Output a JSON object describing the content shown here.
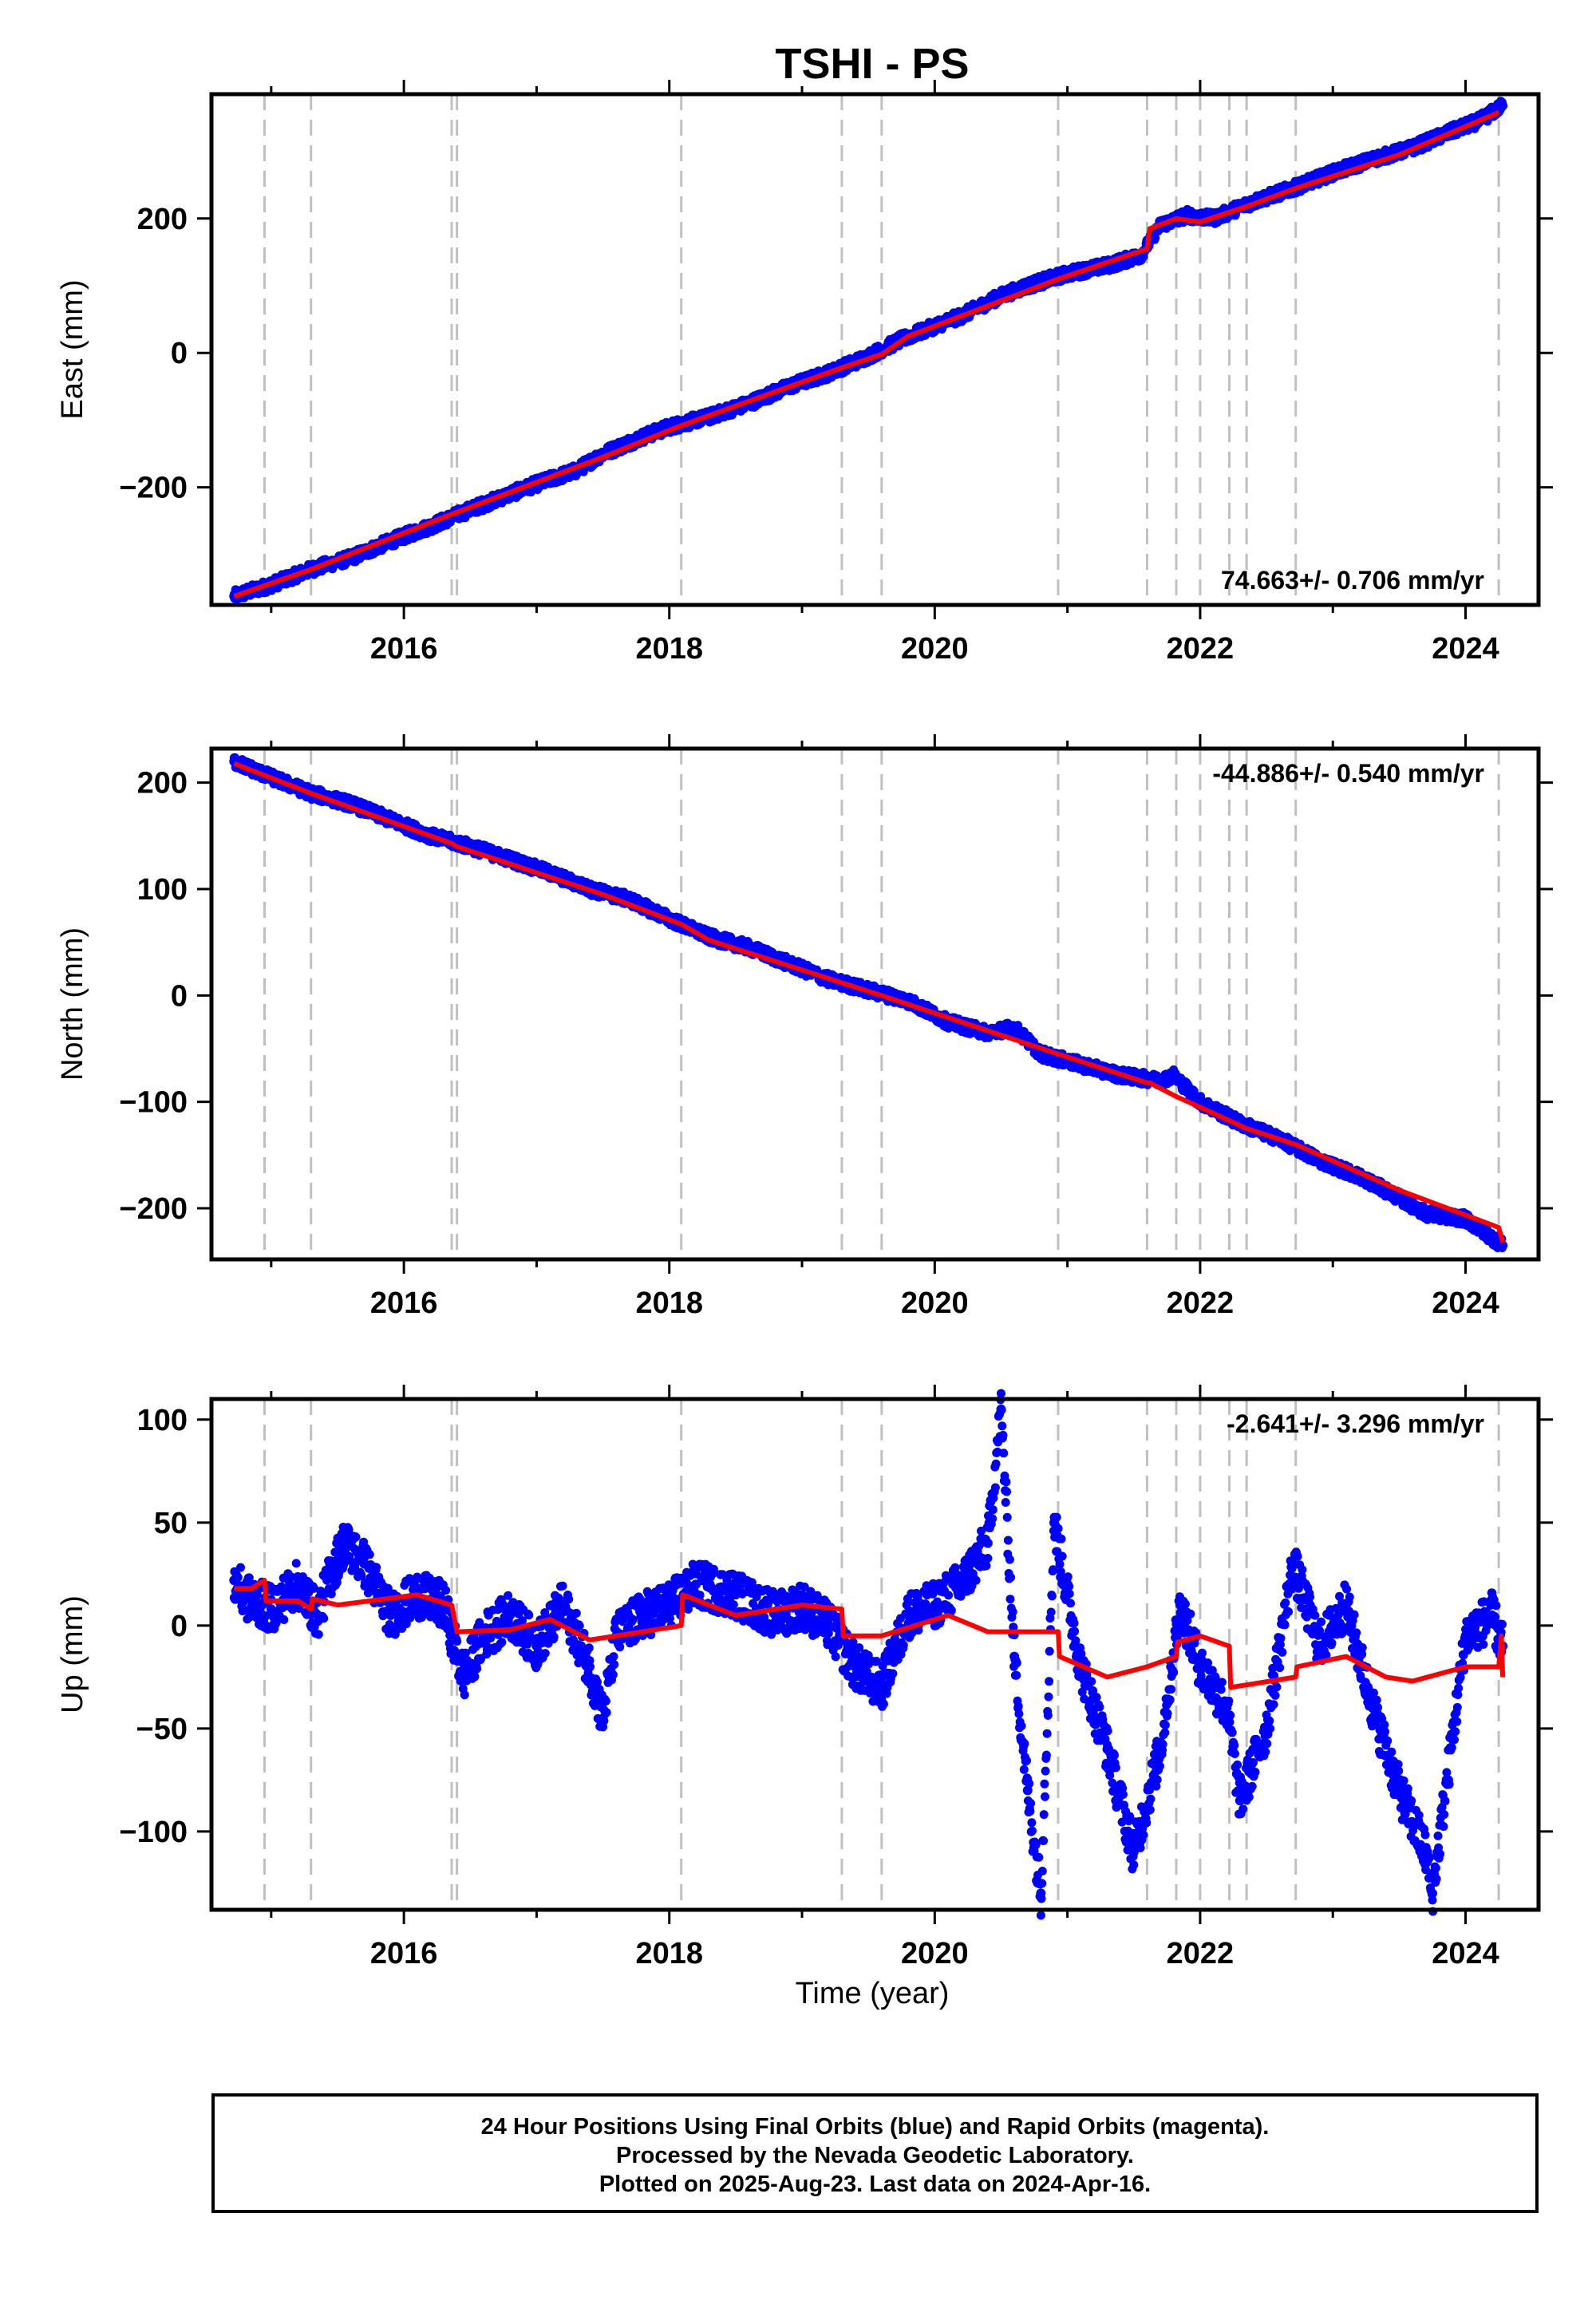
{
  "title": "TSHI - PS",
  "xlabel": "Time (year)",
  "colors": {
    "final_orbits": "#0000ff",
    "model_fit": "#ff0000",
    "event_lines": "#c0c0c0",
    "frame": "#000000"
  },
  "footer": {
    "line1": "24 Hour Positions Using Final Orbits (blue) and Rapid Orbits (magenta).",
    "line2": "Processed by the Nevada Geodetic Laboratory.",
    "line3": "Plotted on 2025-Aug-23. Last data on 2024-Apr-16."
  },
  "chart_data": [
    {
      "type": "scatter",
      "panel": "east",
      "ylabel": "East (mm)",
      "annotation": "74.663+/- 0.706 mm/yr",
      "annotation_position": "bottom-right",
      "xlim": [
        2014.55,
        2024.55
      ],
      "ylim": [
        -375,
        385
      ],
      "xticks": [
        2016,
        2018,
        2020,
        2022,
        2024
      ],
      "yticks": [
        -200,
        0,
        200
      ],
      "event_lines": [
        2014.95,
        2015.3,
        2016.36,
        2016.4,
        2018.09,
        2019.3,
        2019.6,
        2020.93,
        2021.6,
        2021.82,
        2022.0,
        2022.22,
        2022.35,
        2022.72,
        2024.25
      ],
      "series": [
        {
          "kind": "points",
          "values": [
            [
              2014.72,
              -362
            ],
            [
              2015.0,
              -345
            ],
            [
              2015.3,
              -322
            ],
            [
              2015.6,
              -305
            ],
            [
              2015.9,
              -280
            ],
            [
              2016.2,
              -258
            ],
            [
              2016.5,
              -233
            ],
            [
              2016.8,
              -210
            ],
            [
              2017.0,
              -195
            ],
            [
              2017.3,
              -175
            ],
            [
              2017.5,
              -150
            ],
            [
              2017.8,
              -125
            ],
            [
              2018.0,
              -110
            ],
            [
              2018.3,
              -95
            ],
            [
              2018.6,
              -75
            ],
            [
              2018.9,
              -50
            ],
            [
              2019.2,
              -30
            ],
            [
              2019.5,
              -5
            ],
            [
              2019.75,
              20
            ],
            [
              2020.0,
              40
            ],
            [
              2020.2,
              55
            ],
            [
              2020.5,
              85
            ],
            [
              2020.7,
              100
            ],
            [
              2021.0,
              118
            ],
            [
              2021.3,
              130
            ],
            [
              2021.55,
              145
            ],
            [
              2021.7,
              190
            ],
            [
              2021.9,
              205
            ],
            [
              2022.1,
              200
            ],
            [
              2022.4,
              225
            ],
            [
              2022.7,
              245
            ],
            [
              2023.0,
              268
            ],
            [
              2023.3,
              288
            ],
            [
              2023.6,
              305
            ],
            [
              2023.9,
              330
            ],
            [
              2024.1,
              345
            ],
            [
              2024.28,
              368
            ]
          ]
        },
        {
          "kind": "fit",
          "values": [
            [
              2014.72,
              -362
            ],
            [
              2015.3,
              -322
            ],
            [
              2016.36,
              -240
            ],
            [
              2017.5,
              -155
            ],
            [
              2018.09,
              -108
            ],
            [
              2019.3,
              -22
            ],
            [
              2019.6,
              -2
            ],
            [
              2019.8,
              25
            ],
            [
              2020.93,
              110
            ],
            [
              2021.6,
              155
            ],
            [
              2021.62,
              185
            ],
            [
              2021.82,
              200
            ],
            [
              2022.0,
              195
            ],
            [
              2022.35,
              218
            ],
            [
              2022.72,
              245
            ],
            [
              2023.5,
              295
            ],
            [
              2024.25,
              358
            ]
          ]
        }
      ]
    },
    {
      "type": "scatter",
      "panel": "north",
      "ylabel": "North (mm)",
      "annotation": "-44.886+/- 0.540 mm/yr",
      "annotation_position": "top-right",
      "xlim": [
        2014.55,
        2024.55
      ],
      "ylim": [
        -248,
        232
      ],
      "xticks": [
        2016,
        2018,
        2020,
        2022,
        2024
      ],
      "yticks": [
        -200,
        -100,
        0,
        100,
        200
      ],
      "event_lines": [
        2014.95,
        2015.3,
        2016.36,
        2016.4,
        2018.09,
        2019.3,
        2019.6,
        2020.93,
        2021.6,
        2021.82,
        2022.0,
        2022.22,
        2022.35,
        2022.72,
        2024.25
      ],
      "series": [
        {
          "kind": "points",
          "values": [
            [
              2014.72,
              220
            ],
            [
              2015.0,
              205
            ],
            [
              2015.3,
              190
            ],
            [
              2015.6,
              180
            ],
            [
              2015.9,
              165
            ],
            [
              2016.2,
              150
            ],
            [
              2016.5,
              140
            ],
            [
              2016.8,
              128
            ],
            [
              2017.1,
              115
            ],
            [
              2017.4,
              100
            ],
            [
              2017.7,
              90
            ],
            [
              2018.0,
              72
            ],
            [
              2018.3,
              55
            ],
            [
              2018.6,
              45
            ],
            [
              2018.9,
              30
            ],
            [
              2019.2,
              15
            ],
            [
              2019.5,
              5
            ],
            [
              2019.8,
              -5
            ],
            [
              2020.1,
              -25
            ],
            [
              2020.4,
              -35
            ],
            [
              2020.6,
              -30
            ],
            [
              2020.8,
              -55
            ],
            [
              2021.1,
              -65
            ],
            [
              2021.4,
              -75
            ],
            [
              2021.7,
              -80
            ],
            [
              2021.8,
              -75
            ],
            [
              2022.0,
              -100
            ],
            [
              2022.3,
              -120
            ],
            [
              2022.6,
              -135
            ],
            [
              2022.9,
              -155
            ],
            [
              2023.2,
              -170
            ],
            [
              2023.5,
              -190
            ],
            [
              2023.7,
              -205
            ],
            [
              2024.0,
              -210
            ],
            [
              2024.28,
              -235
            ]
          ]
        },
        {
          "kind": "fit",
          "values": [
            [
              2014.72,
              218
            ],
            [
              2015.3,
              190
            ],
            [
              2016.36,
              143
            ],
            [
              2016.4,
              140
            ],
            [
              2017.5,
              95
            ],
            [
              2018.09,
              67
            ],
            [
              2018.3,
              52
            ],
            [
              2019.3,
              12
            ],
            [
              2019.6,
              0
            ],
            [
              2020.93,
              -55
            ],
            [
              2021.6,
              -82
            ],
            [
              2021.62,
              -82
            ],
            [
              2021.82,
              -95
            ],
            [
              2022.0,
              -105
            ],
            [
              2022.35,
              -125
            ],
            [
              2022.72,
              -140
            ],
            [
              2023.5,
              -183
            ],
            [
              2024.25,
              -218
            ],
            [
              2024.28,
              -232
            ]
          ]
        }
      ]
    },
    {
      "type": "scatter",
      "panel": "up",
      "ylabel": "Up (mm)",
      "annotation": "-2.641+/- 3.296 mm/yr",
      "annotation_position": "top-right",
      "xlim": [
        2014.55,
        2024.55
      ],
      "ylim": [
        -138,
        110
      ],
      "xticks": [
        2016,
        2018,
        2020,
        2022,
        2024
      ],
      "yticks": [
        -100,
        -50,
        0,
        50,
        100
      ],
      "event_lines": [
        2014.95,
        2015.3,
        2016.36,
        2016.4,
        2018.09,
        2019.3,
        2019.6,
        2020.93,
        2021.6,
        2021.82,
        2022.0,
        2022.22,
        2022.35,
        2022.72,
        2024.25
      ],
      "series": [
        {
          "kind": "points",
          "values": [
            [
              2014.72,
              22
            ],
            [
              2014.8,
              14
            ],
            [
              2015.0,
              8
            ],
            [
              2015.2,
              20
            ],
            [
              2015.35,
              5
            ],
            [
              2015.45,
              25
            ],
            [
              2015.55,
              40
            ],
            [
              2015.7,
              30
            ],
            [
              2015.9,
              5
            ],
            [
              2016.1,
              15
            ],
            [
              2016.3,
              10
            ],
            [
              2016.45,
              -25
            ],
            [
              2016.6,
              -5
            ],
            [
              2016.8,
              5
            ],
            [
              2017.0,
              -10
            ],
            [
              2017.2,
              10
            ],
            [
              2017.4,
              -20
            ],
            [
              2017.5,
              -45
            ],
            [
              2017.6,
              -5
            ],
            [
              2017.8,
              5
            ],
            [
              2018.0,
              10
            ],
            [
              2018.2,
              20
            ],
            [
              2018.5,
              15
            ],
            [
              2018.8,
              5
            ],
            [
              2019.0,
              10
            ],
            [
              2019.2,
              0
            ],
            [
              2019.4,
              -20
            ],
            [
              2019.6,
              -30
            ],
            [
              2019.8,
              5
            ],
            [
              2020.0,
              10
            ],
            [
              2020.2,
              20
            ],
            [
              2020.4,
              40
            ],
            [
              2020.5,
              105
            ],
            [
              2020.6,
              -15
            ],
            [
              2020.7,
              -80
            ],
            [
              2020.8,
              -130
            ],
            [
              2020.9,
              50
            ],
            [
              2021.1,
              -20
            ],
            [
              2021.3,
              -60
            ],
            [
              2021.5,
              -110
            ],
            [
              2021.7,
              -60
            ],
            [
              2021.85,
              10
            ],
            [
              2022.0,
              -20
            ],
            [
              2022.2,
              -40
            ],
            [
              2022.3,
              -85
            ],
            [
              2022.5,
              -50
            ],
            [
              2022.7,
              30
            ],
            [
              2022.9,
              -10
            ],
            [
              2023.1,
              10
            ],
            [
              2023.3,
              -40
            ],
            [
              2023.5,
              -80
            ],
            [
              2023.7,
              -110
            ],
            [
              2023.75,
              -130
            ],
            [
              2024.0,
              -5
            ],
            [
              2024.2,
              5
            ],
            [
              2024.28,
              -10
            ]
          ]
        },
        {
          "kind": "fit",
          "values": [
            [
              2014.72,
              18
            ],
            [
              2014.85,
              18
            ],
            [
              2014.95,
              22
            ],
            [
              2014.96,
              12
            ],
            [
              2015.2,
              12
            ],
            [
              2015.3,
              8
            ],
            [
              2015.31,
              13
            ],
            [
              2015.5,
              10
            ],
            [
              2016.1,
              15
            ],
            [
              2016.36,
              10
            ],
            [
              2016.4,
              -3
            ],
            [
              2016.8,
              -2
            ],
            [
              2017.1,
              3
            ],
            [
              2017.4,
              -7
            ],
            [
              2018.09,
              0
            ],
            [
              2018.1,
              15
            ],
            [
              2018.5,
              5
            ],
            [
              2019.0,
              10
            ],
            [
              2019.3,
              8
            ],
            [
              2019.31,
              -5
            ],
            [
              2019.6,
              -5
            ],
            [
              2020.1,
              5
            ],
            [
              2020.4,
              -3
            ],
            [
              2020.93,
              -3
            ],
            [
              2020.94,
              -15
            ],
            [
              2021.3,
              -25
            ],
            [
              2021.6,
              -20
            ],
            [
              2021.82,
              -15
            ],
            [
              2021.83,
              -8
            ],
            [
              2022.0,
              -5
            ],
            [
              2022.22,
              -10
            ],
            [
              2022.23,
              -30
            ],
            [
              2022.72,
              -25
            ],
            [
              2022.73,
              -20
            ],
            [
              2023.1,
              -15
            ],
            [
              2023.4,
              -25
            ],
            [
              2023.6,
              -27
            ],
            [
              2024.0,
              -20
            ],
            [
              2024.25,
              -20
            ],
            [
              2024.27,
              -5
            ],
            [
              2024.28,
              -25
            ]
          ]
        }
      ]
    }
  ]
}
